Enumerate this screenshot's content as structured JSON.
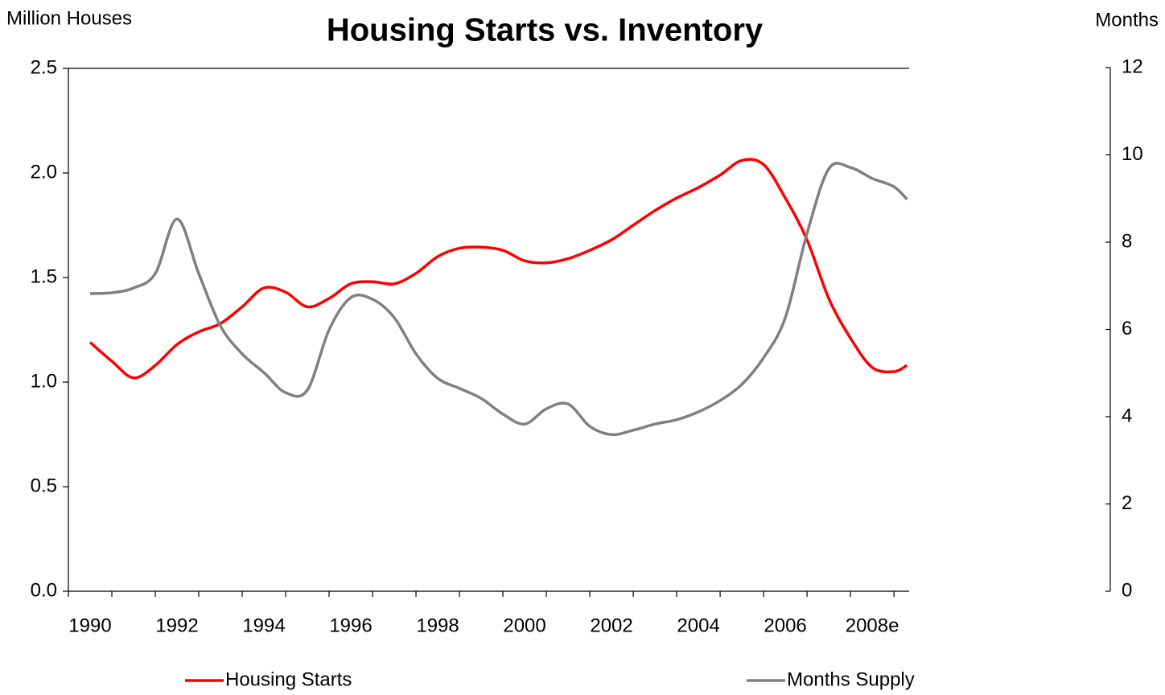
{
  "chart_data": {
    "type": "line",
    "title": "Housing Starts vs. Inventory",
    "y_label": "Million Houses",
    "y2_label": "Months",
    "x": [
      1990,
      1990.5,
      1991,
      1991.5,
      1992,
      1992.5,
      1993,
      1993.5,
      1994,
      1994.5,
      1995,
      1995.5,
      1996,
      1996.5,
      1997,
      1997.5,
      1998,
      1998.5,
      1999,
      1999.5,
      2000,
      2000.5,
      2001,
      2001.5,
      2002,
      2002.5,
      2003,
      2003.5,
      2004,
      2004.5,
      2005,
      2005.5,
      2006,
      2006.5,
      2007,
      2007.5,
      2008,
      2008.5,
      2008.8
    ],
    "series": [
      {
        "name": "Housing Starts",
        "color": "#ff0000",
        "values": [
          1.19,
          1.1,
          1.02,
          1.08,
          1.18,
          1.24,
          1.28,
          1.36,
          1.45,
          1.43,
          1.36,
          1.4,
          1.47,
          1.48,
          1.47,
          1.52,
          1.6,
          1.64,
          1.645,
          1.63,
          1.58,
          1.57,
          1.59,
          1.63,
          1.68,
          1.75,
          1.82,
          1.88,
          1.93,
          1.99,
          2.06,
          2.04,
          1.88,
          1.68,
          1.4,
          1.21,
          1.07,
          1.05,
          1.08
        ]
      },
      {
        "name": "Months Supply",
        "color": "#808080",
        "axis": "y2",
        "values": [
          6.82,
          6.84,
          6.95,
          7.28,
          8.53,
          7.28,
          6.08,
          5.44,
          5.01,
          4.55,
          4.61,
          5.99,
          6.73,
          6.69,
          6.27,
          5.44,
          4.88,
          4.65,
          4.42,
          4.06,
          3.83,
          4.18,
          4.29,
          3.78,
          3.59,
          3.69,
          3.83,
          3.93,
          4.11,
          4.37,
          4.74,
          5.35,
          6.27,
          8.2,
          9.68,
          9.71,
          9.46,
          9.27,
          8.98
        ]
      }
    ],
    "xlim": [
      1989.5,
      2008.85
    ],
    "xticks": [
      {
        "value": 1990,
        "label": "1990"
      },
      {
        "value": 1992,
        "label": "1992"
      },
      {
        "value": 1994,
        "label": "1994"
      },
      {
        "value": 1996,
        "label": "1996"
      },
      {
        "value": 1998,
        "label": "1998"
      },
      {
        "value": 2000,
        "label": "2000"
      },
      {
        "value": 2002,
        "label": "2002"
      },
      {
        "value": 2004,
        "label": "2004"
      },
      {
        "value": 2006,
        "label": "2006"
      },
      {
        "value": 2008,
        "label": "2008e"
      }
    ],
    "xminor_ticks": [
      1989.5,
      1990.5,
      1991.5,
      1992.5,
      1993.5,
      1994.5,
      1995.5,
      1996.5,
      1997.5,
      1998.5,
      1999.5,
      2000.5,
      2001.5,
      2002.5,
      2003.5,
      2004.5,
      2005.5,
      2006.5,
      2007.5,
      2008.5
    ],
    "ylim": [
      0,
      2.5
    ],
    "yticks": [
      {
        "value": 0,
        "label": "0.0"
      },
      {
        "value": 0.5,
        "label": "0.5"
      },
      {
        "value": 1,
        "label": "1.0"
      },
      {
        "value": 1.5,
        "label": "1.5"
      },
      {
        "value": 2,
        "label": "2.0"
      },
      2.5
    ],
    "y2lim": [
      0,
      12
    ],
    "y2ticks": [
      0,
      2,
      4,
      6,
      8,
      10,
      12
    ]
  }
}
